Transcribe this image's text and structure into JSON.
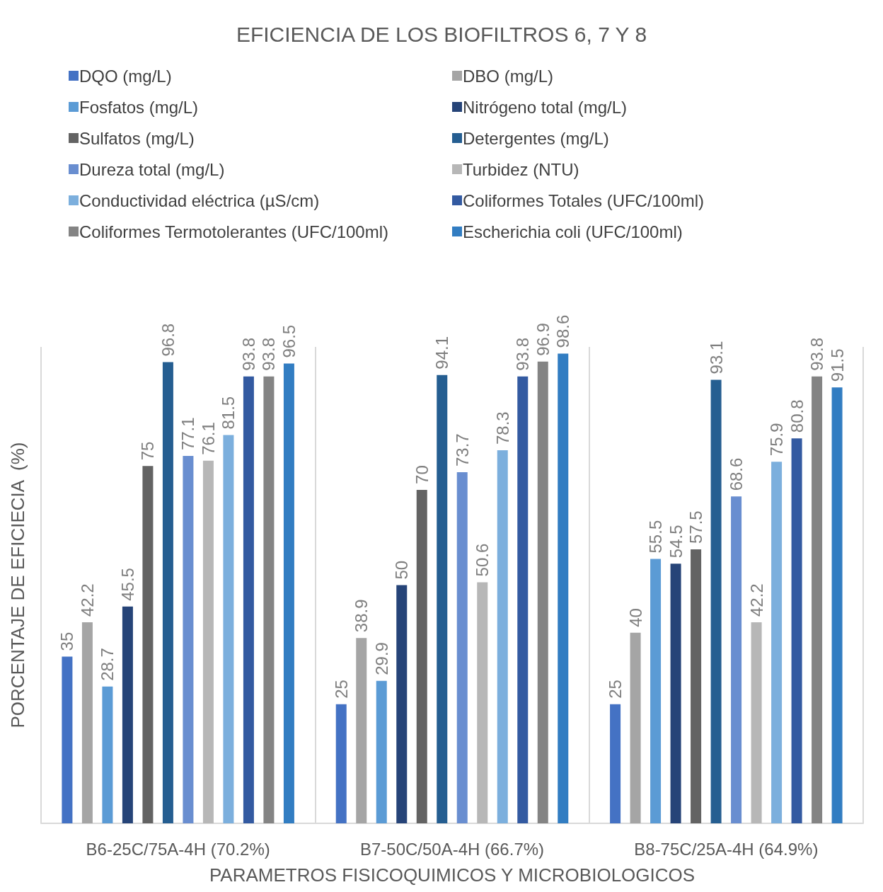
{
  "chart_data": {
    "type": "bar",
    "title": "EFICIENCIA DE LOS BIOFILTROS 6, 7 Y 8",
    "xlabel": "PARAMETROS FISICOQUIMICOS Y MICROBIOLOGICOS",
    "ylabel": "PORCENTAJE DE EFICIECIA  (%)",
    "categories": [
      "B6-25C/75A-4H (70.2%)",
      "B7-50C/50A-4H (66.7%)",
      "B8-75C/25A-4H (64.9%)"
    ],
    "series": [
      {
        "name": "DQO (mg/L)",
        "color": "#4472c4",
        "values": [
          35,
          25,
          25
        ]
      },
      {
        "name": "DBO (mg/L)",
        "color": "#a5a5a5",
        "values": [
          42.2,
          38.9,
          40
        ]
      },
      {
        "name": "Fosfatos (mg/L)",
        "color": "#5b9bd5",
        "values": [
          28.7,
          29.9,
          55.5
        ]
      },
      {
        "name": "Nitrógeno total (mg/L)",
        "color": "#264478",
        "values": [
          45.5,
          50,
          54.5
        ]
      },
      {
        "name": "Sulfatos (mg/L)",
        "color": "#636363",
        "values": [
          75,
          70,
          57.5
        ]
      },
      {
        "name": "Detergentes (mg/L)",
        "color": "#255e91",
        "values": [
          96.8,
          94.1,
          93.1
        ]
      },
      {
        "name": "Dureza total (mg/L)",
        "color": "#698ed0",
        "values": [
          77.1,
          73.7,
          68.6
        ]
      },
      {
        "name": "Turbidez (NTU)",
        "color": "#b7b7b7",
        "values": [
          76.1,
          50.6,
          42.2
        ]
      },
      {
        "name": "Conductividad eléctrica (µS/cm)",
        "color": "#7cafdd",
        "values": [
          81.5,
          78.3,
          75.9
        ]
      },
      {
        "name": "Coliformes Totales (UFC/100ml)",
        "color": "#335aa1",
        "values": [
          93.8,
          93.8,
          80.8
        ]
      },
      {
        "name": "Coliformes Termotolerantes (UFC/100ml)",
        "color": "#848484",
        "values": [
          93.8,
          96.9,
          93.8
        ]
      },
      {
        "name": "Escherichia coli (UFC/100ml)",
        "color": "#327dc2",
        "values": [
          96.5,
          98.6,
          91.5
        ]
      }
    ],
    "ylim": [
      0,
      100
    ],
    "data_labels": true,
    "grid": "x",
    "legend": "top",
    "tick_labels": "x"
  }
}
